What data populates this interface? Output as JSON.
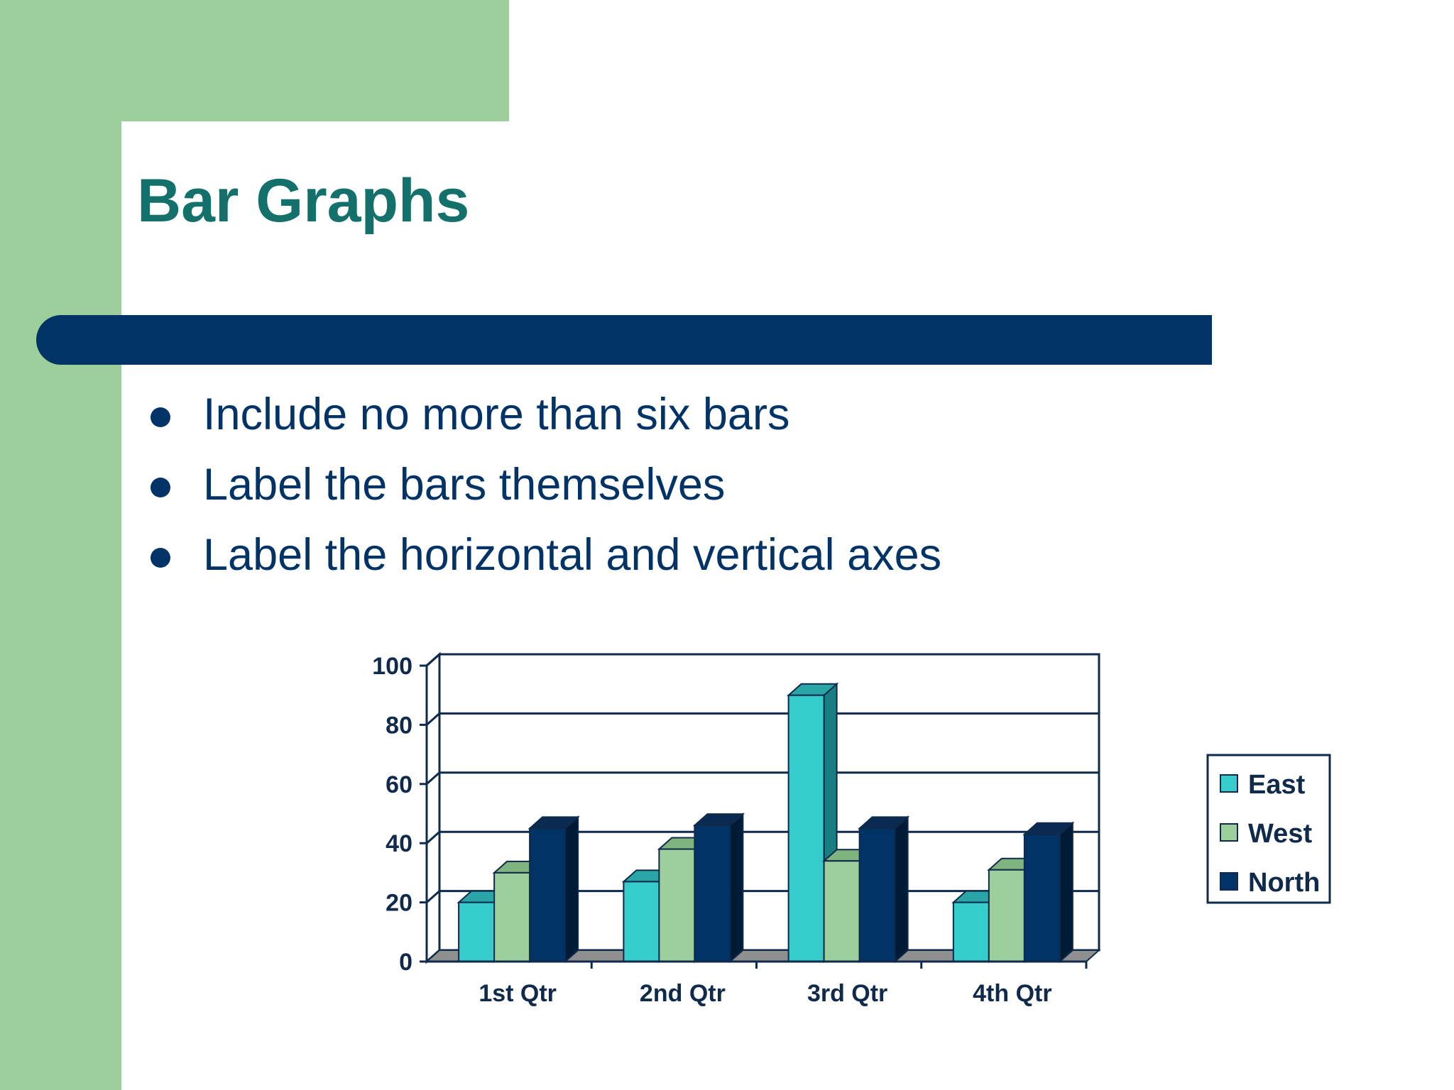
{
  "slide": {
    "title": "Bar Graphs",
    "bullets": [
      "Include no more than six bars",
      "Label the bars themselves",
      "Label the horizontal and vertical axes"
    ]
  },
  "theme": {
    "title_color": "#14706b",
    "text_color": "#023366",
    "green": "#9ccf9b",
    "navy": "#023366"
  },
  "chart_data": {
    "type": "bar",
    "title": "",
    "xlabel": "",
    "ylabel": "",
    "categories": [
      "1st Qtr",
      "2nd Qtr",
      "3rd Qtr",
      "4th Qtr"
    ],
    "series": [
      {
        "name": "East",
        "values": [
          20,
          27,
          90,
          20
        ],
        "color": "#36cccc",
        "side_color": "#1a7f82",
        "top_color": "#2aa5a8"
      },
      {
        "name": "West",
        "values": [
          30,
          38,
          34,
          31
        ],
        "color": "#9ccf9b",
        "side_color": "#5b8e5c",
        "top_color": "#7fb47e"
      },
      {
        "name": "North",
        "values": [
          45,
          46,
          45,
          43
        ],
        "color": "#023366",
        "side_color": "#011a36",
        "top_color": "#0a2a52"
      }
    ],
    "ylim": [
      0,
      100
    ],
    "yticks": [
      0,
      20,
      40,
      60,
      80,
      100
    ],
    "grid": true,
    "legend_position": "right",
    "style": "3d-clustered-column"
  }
}
